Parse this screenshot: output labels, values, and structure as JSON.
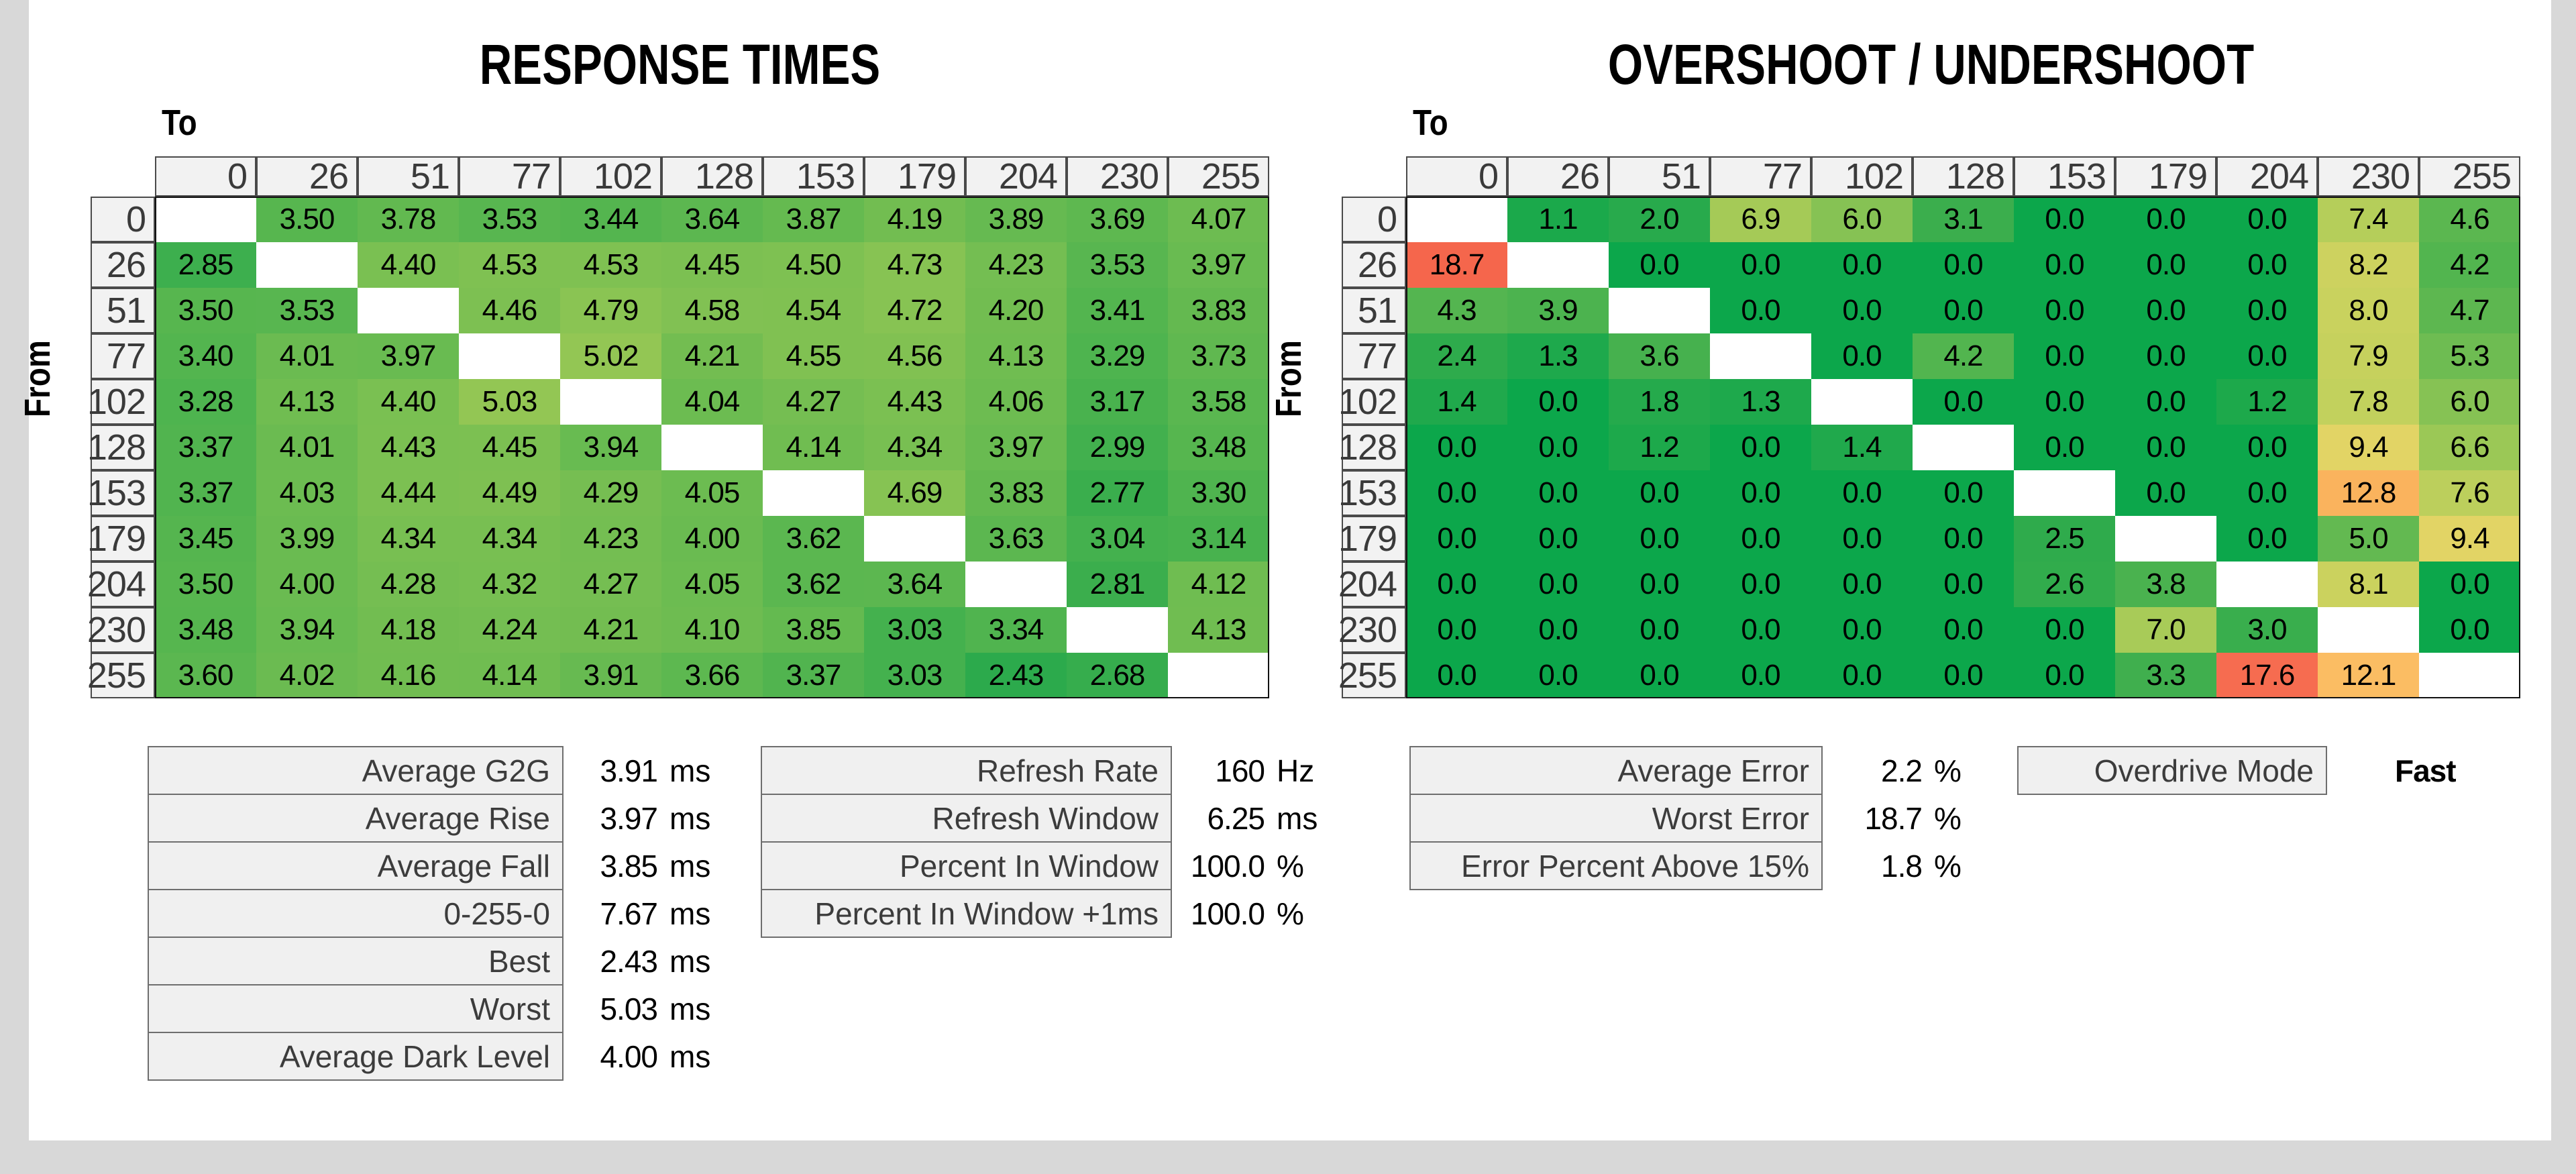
{
  "page": {
    "background": "#D8D8D8",
    "canvas_background": "#FFFFFF"
  },
  "axis_labels": {
    "x": "To",
    "y": "From"
  },
  "gray_levels": [
    "0",
    "26",
    "51",
    "77",
    "102",
    "128",
    "153",
    "179",
    "204",
    "230",
    "255"
  ],
  "chart_data": [
    {
      "type": "heatmap",
      "title": "RESPONSE TIMES",
      "unit": "ms",
      "x_axis_label": "To",
      "y_axis_label": "From",
      "categories": [
        "0",
        "26",
        "51",
        "77",
        "102",
        "128",
        "153",
        "179",
        "204",
        "230",
        "255"
      ],
      "rows": [
        [
          null,
          "3.50",
          "3.78",
          "3.53",
          "3.44",
          "3.64",
          "3.87",
          "4.19",
          "3.89",
          "3.69",
          "4.07"
        ],
        [
          "2.85",
          null,
          "4.40",
          "4.53",
          "4.53",
          "4.45",
          "4.50",
          "4.73",
          "4.23",
          "3.53",
          "3.97"
        ],
        [
          "3.50",
          "3.53",
          null,
          "4.46",
          "4.79",
          "4.58",
          "4.54",
          "4.72",
          "4.20",
          "3.41",
          "3.83"
        ],
        [
          "3.40",
          "4.01",
          "3.97",
          null,
          "5.02",
          "4.21",
          "4.55",
          "4.56",
          "4.13",
          "3.29",
          "3.73"
        ],
        [
          "3.28",
          "4.13",
          "4.40",
          "5.03",
          null,
          "4.04",
          "4.27",
          "4.43",
          "4.06",
          "3.17",
          "3.58"
        ],
        [
          "3.37",
          "4.01",
          "4.43",
          "4.45",
          "3.94",
          null,
          "4.14",
          "4.34",
          "3.97",
          "2.99",
          "3.48"
        ],
        [
          "3.37",
          "4.03",
          "4.44",
          "4.49",
          "4.29",
          "4.05",
          null,
          "4.69",
          "3.83",
          "2.77",
          "3.30"
        ],
        [
          "3.45",
          "3.99",
          "4.34",
          "4.34",
          "4.23",
          "4.00",
          "3.62",
          null,
          "3.63",
          "3.04",
          "3.14"
        ],
        [
          "3.50",
          "4.00",
          "4.28",
          "4.32",
          "4.27",
          "4.05",
          "3.62",
          "3.64",
          null,
          "2.81",
          "4.12"
        ],
        [
          "3.48",
          "3.94",
          "4.18",
          "4.24",
          "4.21",
          "4.10",
          "3.85",
          "3.03",
          "3.34",
          null,
          "4.13"
        ],
        [
          "3.60",
          "4.02",
          "4.16",
          "4.14",
          "3.91",
          "3.66",
          "3.37",
          "3.03",
          "2.43",
          "2.68",
          null
        ]
      ],
      "colormap_anchors": [
        [
          2.3,
          "#27A94C"
        ],
        [
          5.1,
          "#96C754"
        ]
      ]
    },
    {
      "type": "heatmap",
      "title": "OVERSHOOT / UNDERSHOOT",
      "unit": "%",
      "x_axis_label": "To",
      "y_axis_label": "From",
      "categories": [
        "0",
        "26",
        "51",
        "77",
        "102",
        "128",
        "153",
        "179",
        "204",
        "230",
        "255"
      ],
      "rows": [
        [
          null,
          "1.1",
          "2.0",
          "6.9",
          "6.0",
          "3.1",
          "0.0",
          "0.0",
          "0.0",
          "7.4",
          "4.6"
        ],
        [
          "18.7",
          null,
          "0.0",
          "0.0",
          "0.0",
          "0.0",
          "0.0",
          "0.0",
          "0.0",
          "8.2",
          "4.2"
        ],
        [
          "4.3",
          "3.9",
          null,
          "0.0",
          "0.0",
          "0.0",
          "0.0",
          "0.0",
          "0.0",
          "8.0",
          "4.7"
        ],
        [
          "2.4",
          "1.3",
          "3.6",
          null,
          "0.0",
          "4.2",
          "0.0",
          "0.0",
          "0.0",
          "7.9",
          "5.3"
        ],
        [
          "1.4",
          "0.0",
          "1.8",
          "1.3",
          null,
          "0.0",
          "0.0",
          "0.0",
          "1.2",
          "7.8",
          "6.0"
        ],
        [
          "0.0",
          "0.0",
          "1.2",
          "0.0",
          "1.4",
          null,
          "0.0",
          "0.0",
          "0.0",
          "9.4",
          "6.6"
        ],
        [
          "0.0",
          "0.0",
          "0.0",
          "0.0",
          "0.0",
          "0.0",
          null,
          "0.0",
          "0.0",
          "12.8",
          "7.6"
        ],
        [
          "0.0",
          "0.0",
          "0.0",
          "0.0",
          "0.0",
          "0.0",
          "2.5",
          null,
          "0.0",
          "5.0",
          "9.4"
        ],
        [
          "0.0",
          "0.0",
          "0.0",
          "0.0",
          "0.0",
          "0.0",
          "2.6",
          "3.8",
          null,
          "8.1",
          "0.0"
        ],
        [
          "0.0",
          "0.0",
          "0.0",
          "0.0",
          "0.0",
          "0.0",
          "0.0",
          "7.0",
          "3.0",
          null,
          "0.0"
        ],
        [
          "0.0",
          "0.0",
          "0.0",
          "0.0",
          "0.0",
          "0.0",
          "0.0",
          "3.3",
          "17.6",
          "12.1",
          null
        ]
      ],
      "colormap_anchors": [
        [
          0,
          "#0CA74B"
        ],
        [
          2.5,
          "#2FAB4C"
        ],
        [
          5,
          "#63B951"
        ],
        [
          6.5,
          "#98C755"
        ],
        [
          8,
          "#C9D25E"
        ],
        [
          9.5,
          "#E4D465"
        ],
        [
          12.1,
          "#FBBD63"
        ],
        [
          13.2,
          "#F9AE59"
        ],
        [
          17.6,
          "#F66C50"
        ],
        [
          20,
          "#F45F48"
        ]
      ]
    }
  ],
  "summaries": [
    {
      "id": "response-summary",
      "rows": [
        {
          "label": "Average G2G",
          "value": "3.91",
          "unit": "ms"
        },
        {
          "label": "Average Rise",
          "value": "3.97",
          "unit": "ms"
        },
        {
          "label": "Average Fall",
          "value": "3.85",
          "unit": "ms"
        },
        {
          "label": "0-255-0",
          "value": "7.67",
          "unit": "ms"
        },
        {
          "label": "Best",
          "value": "2.43",
          "unit": "ms"
        },
        {
          "label": "Worst",
          "value": "5.03",
          "unit": "ms"
        },
        {
          "label": "Average Dark Level",
          "value": "4.00",
          "unit": "ms"
        }
      ]
    },
    {
      "id": "refresh-summary",
      "rows": [
        {
          "label": "Refresh Rate",
          "value": "160",
          "unit": "Hz"
        },
        {
          "label": "Refresh Window",
          "value": "6.25",
          "unit": "ms"
        },
        {
          "label": "Percent In Window",
          "value": "100.0",
          "unit": "%"
        },
        {
          "label": "Percent In Window +1ms",
          "value": "100.0",
          "unit": "%"
        }
      ]
    },
    {
      "id": "error-summary",
      "rows": [
        {
          "label": "Average Error",
          "value": "2.2",
          "unit": "%"
        },
        {
          "label": "Worst Error",
          "value": "18.7",
          "unit": "%"
        },
        {
          "label": "Error Percent Above 15%",
          "value": "1.8",
          "unit": "%"
        }
      ]
    },
    {
      "id": "overdrive-summary",
      "rows": [
        {
          "label": "Overdrive Mode",
          "value": "Fast",
          "unit": ""
        }
      ]
    }
  ],
  "colors": {
    "header_bg": "#F2F2F2",
    "header_border": "#4A4A4A",
    "label_bg": "#F0F0F0",
    "label_border": "#6E6E6E",
    "label_text": "#3C3C3C",
    "matrix_outline": "#111111",
    "diagonal": "#FFFFFF",
    "green_low": "#0CA74B",
    "yellow_mid": "#E4D465",
    "orange_high": "#F9AE59",
    "red_max": "#F45F48"
  }
}
